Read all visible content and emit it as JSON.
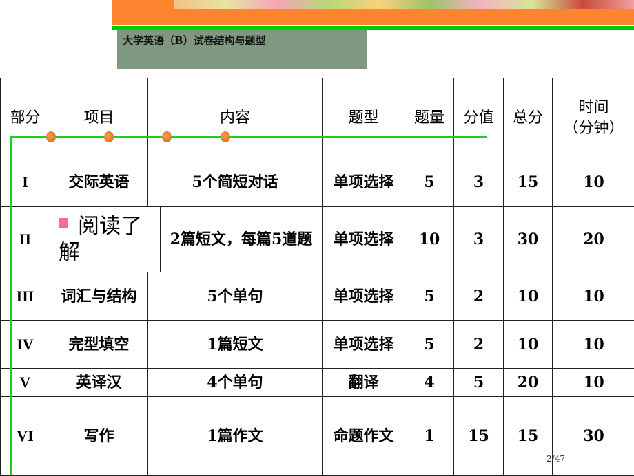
{
  "slide": {
    "title": "大学英语（B）试卷结构与题型",
    "page_number": "2/47"
  },
  "table": {
    "headers": [
      "部分",
      "项目",
      "内容",
      "题型",
      "题量",
      "分值",
      "总分",
      "时间（分钟）"
    ],
    "header_time_line1": "时间",
    "header_time_line2": "（分钟）",
    "rows": [
      {
        "part": "I",
        "item": "交际英语",
        "content": "5个简短对话",
        "type": "单项选择",
        "count": "5",
        "score": "3",
        "total": "15",
        "time": "10"
      },
      {
        "part": "II",
        "item": "阅读了解",
        "content": "2篇短文，每篇5道题",
        "type": "单项选择",
        "count": "10",
        "score": "3",
        "total": "30",
        "time": "20"
      },
      {
        "part": "III",
        "item": "词汇与结构",
        "content": "5个单句",
        "type": "单项选择",
        "count": "5",
        "score": "2",
        "total": "10",
        "time": "10"
      },
      {
        "part": "IV",
        "item": "完型填空",
        "content": "1篇短文",
        "type": "单项选择",
        "count": "5",
        "score": "2",
        "total": "10",
        "time": "10"
      },
      {
        "part": "V",
        "item": "英译汉",
        "content": "4个单句",
        "type": "翻译",
        "count": "4",
        "score": "5",
        "total": "20",
        "time": "10"
      },
      {
        "part": "VI",
        "item": "写作",
        "content": "1篇作文",
        "type": "命题作文",
        "count": "1",
        "score": "15",
        "total": "15",
        "time": "30"
      }
    ]
  },
  "colors": {
    "banner": "#fd8530",
    "green": "#00cc00",
    "title_box": "#7f987f",
    "bullet": "#ff66aa"
  }
}
